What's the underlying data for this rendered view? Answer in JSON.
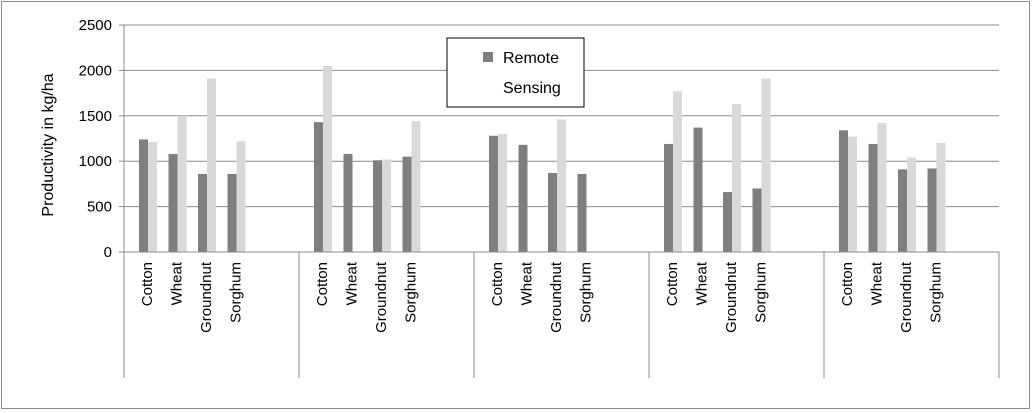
{
  "chart_data": {
    "type": "bar",
    "title": "",
    "ylabel": "Productivity in kg/ha",
    "xlabel": "",
    "ylim": [
      0,
      2500
    ],
    "yticks": [
      0,
      500,
      1000,
      1500,
      2000,
      2500
    ],
    "grid": true,
    "legend": {
      "position": "top-center",
      "text": "Remote Sensing"
    },
    "groups": [
      {
        "categories": [
          "Cotton",
          "Wheat",
          "Groundnut",
          "Sorghum"
        ],
        "series": [
          {
            "name": "Remote Sensing",
            "values": [
              1240,
              1080,
              860,
              860
            ]
          },
          {
            "values": [
              1210,
              1500,
              1910,
              1220
            ]
          }
        ]
      },
      {
        "categories": [
          "Cotton",
          "Wheat",
          "Groundnut",
          "Sorghum"
        ],
        "series": [
          {
            "name": "Remote Sensing",
            "values": [
              1430,
              1080,
              1010,
              1050
            ]
          },
          {
            "values": [
              2050,
              null,
              1020,
              1440
            ]
          }
        ]
      },
      {
        "categories": [
          "Cotton",
          "Wheat",
          "Groundnut",
          "Sorghum"
        ],
        "series": [
          {
            "name": "Remote Sensing",
            "values": [
              1280,
              1180,
              870,
              860
            ]
          },
          {
            "values": [
              1300,
              null,
              1460,
              null
            ]
          }
        ]
      },
      {
        "categories": [
          "Cotton",
          "Wheat",
          "Groundnut",
          "Sorghum"
        ],
        "series": [
          {
            "name": "Remote Sensing",
            "values": [
              1190,
              1370,
              660,
              700
            ]
          },
          {
            "values": [
              1770,
              null,
              1630,
              1910
            ]
          }
        ]
      },
      {
        "categories": [
          "Cotton",
          "Wheat",
          "Groundnut",
          "Sorghum"
        ],
        "series": [
          {
            "name": "Remote Sensing",
            "values": [
              1340,
              1190,
              910,
              920
            ]
          },
          {
            "values": [
              1270,
              1420,
              1040,
              1200
            ]
          }
        ]
      }
    ],
    "colors": {
      "series1": "#7f7f7f",
      "series2": "#d9d9d9",
      "grid": "#8c8c8c",
      "axis": "#8c8c8c"
    }
  }
}
